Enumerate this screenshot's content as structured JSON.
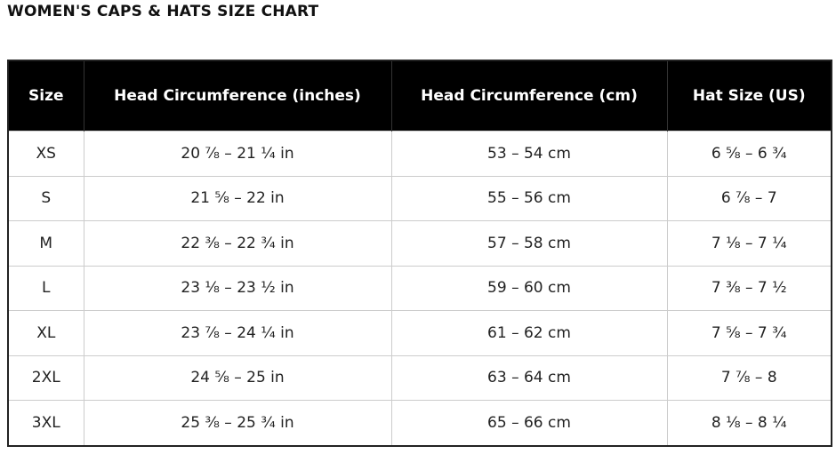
{
  "title": "WOMEN'S CAPS & HATS SIZE CHART",
  "table": {
    "headers": [
      "Size",
      "Head Circumference (inches)",
      "Head Circumference (cm)",
      "Hat Size (US)"
    ],
    "rows": [
      [
        "XS",
        "20 ⅞ – 21 ¼ in",
        "53 – 54 cm",
        "6 ⅝ – 6 ¾"
      ],
      [
        "S",
        "21 ⅝ – 22 in",
        "55 – 56 cm",
        "6 ⅞ – 7"
      ],
      [
        "M",
        "22 ⅜ – 22 ¾ in",
        "57 – 58 cm",
        "7 ⅛ – 7 ¼"
      ],
      [
        "L",
        "23 ⅛ – 23 ½ in",
        "59 – 60 cm",
        "7 ⅜ – 7 ½"
      ],
      [
        "XL",
        "23 ⅞ – 24 ¼ in",
        "61 – 62 cm",
        "7 ⅝ – 7 ¾"
      ],
      [
        "2XL",
        "24 ⅝ – 25 in",
        "63 – 64 cm",
        "7 ⅞ – 8"
      ],
      [
        "3XL",
        "25 ⅜ – 25 ¾ in",
        "65 – 66 cm",
        "8 ⅛ – 8 ¼"
      ]
    ]
  }
}
